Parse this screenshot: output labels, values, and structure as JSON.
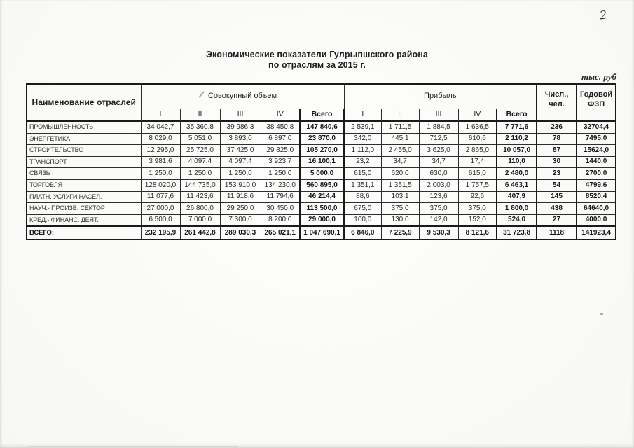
{
  "page": {
    "page_number": "2",
    "title_line1": "Экономические показатели Гулрыпшского района",
    "title_line2": "по отраслям за 2015 г.",
    "units_note": "тыс. руб"
  },
  "colors": {
    "ink": "#242424",
    "paper": "#fbfbf9",
    "table_line": "#1a1a1a"
  },
  "table": {
    "name_header": "Наименование отраслей",
    "group_volume": "Совокупный объем",
    "group_profit": "Прибыль",
    "header_headcount": "Числ., чел.",
    "header_payroll": "Годовой ФЗП",
    "quarter_headers": [
      "I",
      "II",
      "III",
      "IV",
      "Всего"
    ],
    "rows": [
      {
        "name": "ПРОМЫШЛЕННОСТЬ",
        "volume": [
          "34 042,7",
          "35 360,8",
          "39 986,3",
          "38 450,8",
          "147 840,6"
        ],
        "profit": [
          "2 539,1",
          "1 711,5",
          "1 884,5",
          "1 636,5",
          "7 771,6"
        ],
        "headcount": "236",
        "payroll": "32704,4"
      },
      {
        "name": "ЭНЕРГЕТИКА",
        "volume": [
          "8 029,0",
          "5 051,0",
          "3 893,0",
          "6 897,0",
          "23 870,0"
        ],
        "profit": [
          "342,0",
          "445,1",
          "712,5",
          "610,6",
          "2 110,2"
        ],
        "headcount": "78",
        "payroll": "7495,0"
      },
      {
        "name": "СТРОИТЕЛЬСТВО",
        "volume": [
          "12 295,0",
          "25 725,0",
          "37 425,0",
          "29 825,0",
          "105 270,0"
        ],
        "profit": [
          "1 112,0",
          "2 455,0",
          "3 625,0",
          "2 865,0",
          "10 057,0"
        ],
        "headcount": "87",
        "payroll": "15624,0"
      },
      {
        "name": "ТРАНСПОРТ",
        "volume": [
          "3 981,6",
          "4 097,4",
          "4 097,4",
          "3 923,7",
          "16 100,1"
        ],
        "profit": [
          "23,2",
          "34,7",
          "34,7",
          "17,4",
          "110,0"
        ],
        "headcount": "30",
        "payroll": "1440,0"
      },
      {
        "name": "СВЯЗЬ",
        "volume": [
          "1 250,0",
          "1 250,0",
          "1 250,0",
          "1 250,0",
          "5 000,0"
        ],
        "profit": [
          "615,0",
          "620,0",
          "630,0",
          "615,0",
          "2 480,0"
        ],
        "headcount": "23",
        "payroll": "2700,0"
      },
      {
        "name": "ТОРГОВЛЯ",
        "volume": [
          "128 020,0",
          "144 735,0",
          "153 910,0",
          "134 230,0",
          "560 895,0"
        ],
        "profit": [
          "1 351,1",
          "1 351,5",
          "2 003,0",
          "1 757,5",
          "6 463,1"
        ],
        "headcount": "54",
        "payroll": "4799,6"
      },
      {
        "name": "ПЛАТН. УСЛУГИ НАСЕЛ.",
        "volume": [
          "11 077,6",
          "11 423,6",
          "11 918,6",
          "11 794,6",
          "46 214,4"
        ],
        "profit": [
          "88,6",
          "103,1",
          "123,6",
          "92,6",
          "407,9"
        ],
        "headcount": "145",
        "payroll": "8520,4"
      },
      {
        "name": "НАУЧ.- ПРОИЗВ. СЕКТОР",
        "volume": [
          "27 000,0",
          "26 800,0",
          "29 250,0",
          "30 450,0",
          "113 500,0"
        ],
        "profit": [
          "675,0",
          "375,0",
          "375,0",
          "375,0",
          "1 800,0"
        ],
        "headcount": "438",
        "payroll": "64640,0"
      },
      {
        "name": "КРЕД.- ФИНАНС. ДЕЯТ.",
        "volume": [
          "6 500,0",
          "7 000,0",
          "7 300,0",
          "8 200,0",
          "29 000,0"
        ],
        "profit": [
          "100,0",
          "130,0",
          "142,0",
          "152,0",
          "524,0"
        ],
        "headcount": "27",
        "payroll": "4000,0"
      }
    ],
    "total_row": {
      "name": "ВСЕГО:",
      "volume": [
        "232 195,9",
        "261 442,8",
        "289 030,3",
        "265 021,1",
        "1 047 690,1"
      ],
      "profit": [
        "6 846,0",
        "7 225,9",
        "9 530,3",
        "8 121,6",
        "31 723,8"
      ],
      "headcount": "1118",
      "payroll": "141923,4"
    }
  }
}
